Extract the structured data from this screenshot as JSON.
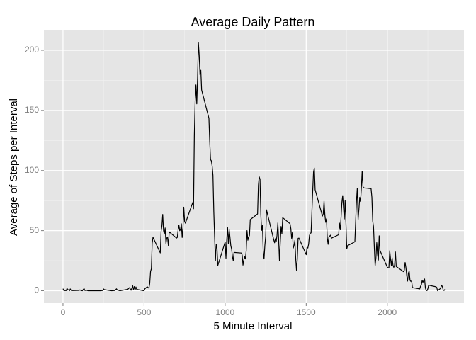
{
  "chart_data": {
    "type": "line",
    "title": "Average Daily Pattern",
    "x_label": "5 Minute Interval",
    "y_label": "Average of Steps per Interval",
    "x": [
      0,
      5,
      10,
      20,
      25,
      30,
      35,
      40,
      45,
      50,
      55,
      100,
      105,
      110,
      120,
      125,
      130,
      135,
      145,
      155,
      200,
      230,
      245,
      250,
      255,
      300,
      320,
      330,
      335,
      340,
      350,
      400,
      410,
      420,
      430,
      435,
      440,
      445,
      450,
      455,
      500,
      505,
      515,
      520,
      530,
      535,
      540,
      545,
      550,
      555,
      600,
      605,
      610,
      615,
      620,
      625,
      630,
      635,
      640,
      645,
      650,
      655,
      700,
      705,
      710,
      715,
      720,
      725,
      730,
      735,
      740,
      745,
      750,
      755,
      800,
      805,
      810,
      815,
      820,
      825,
      830,
      835,
      840,
      845,
      850,
      855,
      900,
      905,
      910,
      915,
      920,
      925,
      930,
      935,
      940,
      945,
      950,
      955,
      1000,
      1005,
      1010,
      1015,
      1020,
      1025,
      1030,
      1035,
      1040,
      1045,
      1050,
      1055,
      1100,
      1105,
      1110,
      1115,
      1120,
      1125,
      1130,
      1135,
      1140,
      1145,
      1150,
      1155,
      1200,
      1205,
      1210,
      1215,
      1220,
      1225,
      1230,
      1235,
      1240,
      1245,
      1250,
      1255,
      1300,
      1305,
      1310,
      1315,
      1320,
      1325,
      1330,
      1335,
      1340,
      1345,
      1350,
      1355,
      1400,
      1405,
      1410,
      1415,
      1420,
      1425,
      1430,
      1435,
      1440,
      1445,
      1450,
      1455,
      1500,
      1505,
      1510,
      1515,
      1520,
      1525,
      1530,
      1535,
      1540,
      1545,
      1550,
      1555,
      1600,
      1605,
      1610,
      1615,
      1620,
      1625,
      1630,
      1635,
      1640,
      1645,
      1650,
      1655,
      1700,
      1705,
      1710,
      1715,
      1720,
      1725,
      1730,
      1735,
      1740,
      1745,
      1750,
      1755,
      1800,
      1805,
      1810,
      1815,
      1820,
      1825,
      1830,
      1835,
      1840,
      1845,
      1850,
      1855,
      1900,
      1905,
      1910,
      1915,
      1920,
      1925,
      1930,
      1935,
      1940,
      1945,
      1950,
      1955,
      2000,
      2005,
      2010,
      2015,
      2020,
      2025,
      2030,
      2035,
      2040,
      2045,
      2050,
      2055,
      2100,
      2105,
      2110,
      2115,
      2120,
      2125,
      2130,
      2135,
      2140,
      2145,
      2150,
      2155,
      2200,
      2205,
      2210,
      2215,
      2220,
      2225,
      2230,
      2235,
      2240,
      2245,
      2250,
      2255,
      2300,
      2305,
      2310,
      2315,
      2320,
      2325,
      2330,
      2335,
      2340,
      2345,
      2350,
      2355
    ],
    "series": [
      {
        "color": "#000000",
        "values": [
          1.7,
          0.3,
          0.1,
          0.1,
          2.1,
          0.5,
          0.9,
          0,
          1.5,
          0.3,
          0.1,
          0.3,
          0.7,
          0.2,
          0,
          1.1,
          1.8,
          0.2,
          0.4,
          0,
          0,
          0,
          0.2,
          1.5,
          0.9,
          0,
          0.2,
          1.6,
          0.6,
          0.5,
          0,
          1.2,
          2.6,
          0.4,
          4.1,
          0.7,
          3.5,
          0.8,
          3.1,
          1.1,
          0,
          1.6,
          2.8,
          3.3,
          2.1,
          6.1,
          16.0,
          18.3,
          39.5,
          44.5,
          31.5,
          49.3,
          53.8,
          63.5,
          50.0,
          47.1,
          52.2,
          39.3,
          44.0,
          44.2,
          37.4,
          49.0,
          43.8,
          44.4,
          50.5,
          54.5,
          49.9,
          50.9,
          55.7,
          44.3,
          52.3,
          69.5,
          57.8,
          56.2,
          73.4,
          68.2,
          129.4,
          157.5,
          171.2,
          155.4,
          177.3,
          206.2,
          195.9,
          179.6,
          183.4,
          167.0,
          143.5,
          124.0,
          109.1,
          108.1,
          103.7,
          95.9,
          66.2,
          45.2,
          24.8,
          38.8,
          35.0,
          21.1,
          40.6,
          27.0,
          42.4,
          52.7,
          38.9,
          50.8,
          44.3,
          37.4,
          34.7,
          28.3,
          25.1,
          31.9,
          31.4,
          29.7,
          21.3,
          25.5,
          28.4,
          26.5,
          33.4,
          50.0,
          42.0,
          44.6,
          46.0,
          59.2,
          63.9,
          87.7,
          94.8,
          92.8,
          63.4,
          50.2,
          54.5,
          32.4,
          26.5,
          37.7,
          45.1,
          67.3,
          42.3,
          39.9,
          43.3,
          41.0,
          46.2,
          56.4,
          42.8,
          25.1,
          40.0,
          53.5,
          47.3,
          60.8,
          55.8,
          52.0,
          43.6,
          48.7,
          35.5,
          37.5,
          41.8,
          27.5,
          17.1,
          26.1,
          43.6,
          43.8,
          30.0,
          36.1,
          35.5,
          38.8,
          46.0,
          47.8,
          48.1,
          65.3,
          82.9,
          98.7,
          102.1,
          84.0,
          62.1,
          64.1,
          74.5,
          63.2,
          56.9,
          59.8,
          43.9,
          38.6,
          44.7,
          45.5,
          46.2,
          43.7,
          46.6,
          56.3,
          50.7,
          61.2,
          73.4,
          79.1,
          68.9,
          59.7,
          75.1,
          56.5,
          34.8,
          37.5,
          40.7,
          58.0,
          74.7,
          85.3,
          59.3,
          67.8,
          77.7,
          74.2,
          85.3,
          99.5,
          86.6,
          85.6,
          84.9,
          77.8,
          58.0,
          53.4,
          36.3,
          20.7,
          27.4,
          40.0,
          30.2,
          25.5,
          45.7,
          33.5,
          19.6,
          19.0,
          19.3,
          33.3,
          26.8,
          21.2,
          27.3,
          21.3,
          19.5,
          21.3,
          32.3,
          20.2,
          15.9,
          17.2,
          23.5,
          19.2,
          12.5,
          8.0,
          14.7,
          16.3,
          8.7,
          7.8,
          8.1,
          2.6,
          1.5,
          3.7,
          4.8,
          8.5,
          7.1,
          8.7,
          9.8,
          2.2,
          0.3,
          0.1,
          1.6,
          4.6,
          3.3,
          2.8,
          0,
          0.8,
          1.0,
          1.6,
          2.6,
          4.7,
          3.3,
          0.6,
          0.2,
          1.1
        ]
      }
    ],
    "xlim": [
      -117.75,
      2472.75
    ],
    "xticks": [
      0,
      500,
      1000,
      1500,
      2000
    ],
    "ylim": [
      -10.31,
      216.48
    ],
    "yticks": [
      0,
      50,
      100,
      150,
      200
    ],
    "grid": true,
    "panel_color": "#e5e5e5"
  }
}
